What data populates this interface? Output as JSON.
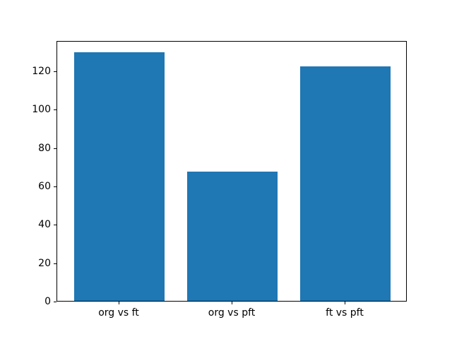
{
  "chart_data": {
    "type": "bar",
    "title": "",
    "xlabel": "",
    "ylabel": "",
    "categories": [
      "org vs ft",
      "org vs pft",
      "ft vs pft"
    ],
    "values": [
      129.7,
      67.3,
      122.1
    ],
    "yticks": [
      0,
      20,
      40,
      60,
      80,
      100,
      120
    ],
    "ylim": [
      0,
      135.9
    ],
    "bar_color": "#1f77b4",
    "bar_width_fraction": 0.8,
    "grid": false,
    "legend": null,
    "background_color": "#ffffff",
    "spine_color": "#000000"
  }
}
